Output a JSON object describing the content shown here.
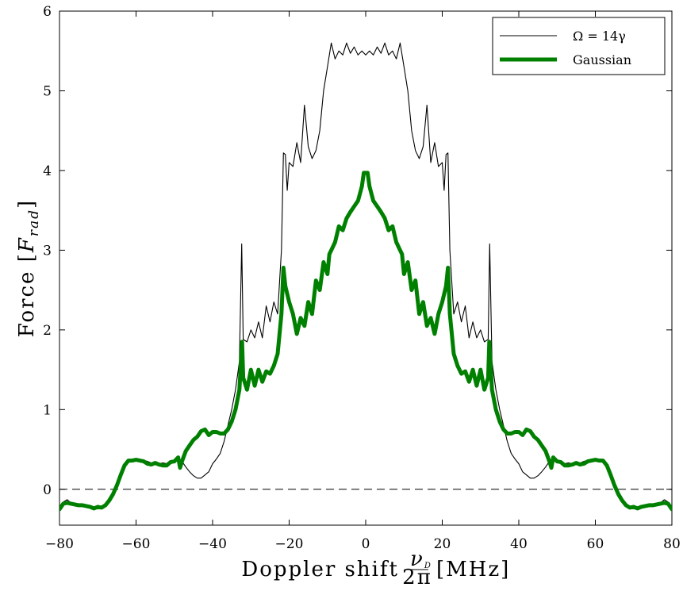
{
  "chart_data": {
    "type": "line",
    "title": "",
    "xlabel": {
      "prefix": "Doppler shift",
      "frac_num": "ν",
      "frac_num_sub": "D",
      "frac_den": "2π",
      "unit": "[MHz]"
    },
    "ylabel": {
      "prefix": "Force [",
      "var": "F",
      "sub": "rad",
      "suffix": "]"
    },
    "xlim": [
      -80,
      80
    ],
    "ylim": [
      -0.45,
      6
    ],
    "xticks": [
      -80,
      -60,
      -40,
      -20,
      0,
      20,
      40,
      60,
      80
    ],
    "yticks": [
      0,
      1,
      2,
      3,
      4,
      5,
      6
    ],
    "xtick_labels": [
      "−80",
      "−60",
      "−40",
      "−20",
      "0",
      "20",
      "40",
      "60",
      "80"
    ],
    "ytick_labels": [
      "0",
      "1",
      "2",
      "3",
      "4",
      "5",
      "6"
    ],
    "grid": false,
    "legend_placement": "top-right",
    "reference_line": {
      "y": 0,
      "style": "dashed",
      "color": "#000000"
    },
    "series": [
      {
        "name": "Ω = 14γ",
        "color": "#000000",
        "width": "thin",
        "half_points": [
          [
            0,
            5.45
          ],
          [
            1,
            5.5
          ],
          [
            2,
            5.45
          ],
          [
            3,
            5.55
          ],
          [
            4,
            5.47
          ],
          [
            5,
            5.6
          ],
          [
            6,
            5.45
          ],
          [
            7,
            5.5
          ],
          [
            8,
            5.4
          ],
          [
            9,
            5.6
          ],
          [
            10,
            5.3
          ],
          [
            11,
            5.0
          ],
          [
            12,
            4.5
          ],
          [
            13,
            4.25
          ],
          [
            14,
            4.15
          ],
          [
            15,
            4.3
          ],
          [
            16,
            4.82
          ],
          [
            17,
            4.1
          ],
          [
            18,
            4.35
          ],
          [
            19,
            4.05
          ],
          [
            20,
            4.1
          ],
          [
            20.5,
            3.75
          ],
          [
            21,
            4.2
          ],
          [
            21.5,
            4.22
          ],
          [
            22,
            3.0
          ],
          [
            23,
            2.2
          ],
          [
            24,
            2.35
          ],
          [
            25,
            2.1
          ],
          [
            26,
            2.3
          ],
          [
            27,
            1.9
          ],
          [
            28,
            2.1
          ],
          [
            29,
            1.9
          ],
          [
            30,
            2.0
          ],
          [
            31,
            1.85
          ],
          [
            32,
            1.88
          ],
          [
            32.4,
            3.08
          ],
          [
            33,
            1.6
          ],
          [
            34,
            1.25
          ],
          [
            35,
            1.0
          ],
          [
            36,
            0.8
          ],
          [
            37,
            0.6
          ],
          [
            38,
            0.45
          ],
          [
            39,
            0.38
          ],
          [
            40,
            0.32
          ],
          [
            41,
            0.22
          ],
          [
            42,
            0.18
          ],
          [
            43,
            0.14
          ],
          [
            44,
            0.14
          ],
          [
            45,
            0.17
          ],
          [
            46,
            0.22
          ],
          [
            47,
            0.28
          ],
          [
            48,
            0.35
          ],
          [
            49,
            0.38
          ],
          [
            50,
            0.35
          ],
          [
            51,
            0.36
          ],
          [
            52,
            0.32
          ],
          [
            53,
            0.33
          ],
          [
            54,
            0.32
          ],
          [
            55,
            0.34
          ],
          [
            56,
            0.33
          ],
          [
            57,
            0.35
          ],
          [
            58,
            0.36
          ],
          [
            59,
            0.37
          ],
          [
            60,
            0.37
          ],
          [
            61,
            0.36
          ],
          [
            62,
            0.36
          ],
          [
            63,
            0.3
          ],
          [
            64,
            0.18
          ],
          [
            65,
            0.05
          ],
          [
            66,
            -0.06
          ],
          [
            67,
            -0.14
          ],
          [
            68,
            -0.2
          ],
          [
            69,
            -0.23
          ],
          [
            70,
            -0.22
          ],
          [
            71,
            -0.24
          ],
          [
            72,
            -0.21
          ],
          [
            73,
            -0.2
          ],
          [
            74,
            -0.19
          ],
          [
            75,
            -0.2
          ],
          [
            76,
            -0.19
          ],
          [
            77,
            -0.17
          ],
          [
            78,
            -0.13
          ],
          [
            79,
            -0.16
          ],
          [
            80,
            -0.25
          ]
        ]
      },
      {
        "name": "Gaussian",
        "color": "#008000",
        "width": "thick",
        "half_points": [
          [
            0,
            3.97
          ],
          [
            0.5,
            3.97
          ],
          [
            1,
            3.8
          ],
          [
            2,
            3.62
          ],
          [
            3,
            3.55
          ],
          [
            4,
            3.48
          ],
          [
            5,
            3.4
          ],
          [
            6,
            3.25
          ],
          [
            7,
            3.3
          ],
          [
            8,
            3.1
          ],
          [
            9,
            3.0
          ],
          [
            9.5,
            2.95
          ],
          [
            10,
            2.7
          ],
          [
            11,
            2.85
          ],
          [
            12,
            2.5
          ],
          [
            13,
            2.62
          ],
          [
            14,
            2.2
          ],
          [
            15,
            2.35
          ],
          [
            16,
            2.05
          ],
          [
            17,
            2.15
          ],
          [
            18,
            1.95
          ],
          [
            19,
            2.2
          ],
          [
            20,
            2.35
          ],
          [
            21,
            2.55
          ],
          [
            21.5,
            2.78
          ],
          [
            22,
            2.2
          ],
          [
            23,
            1.7
          ],
          [
            24,
            1.55
          ],
          [
            25,
            1.45
          ],
          [
            26,
            1.48
          ],
          [
            27,
            1.35
          ],
          [
            28,
            1.5
          ],
          [
            29,
            1.3
          ],
          [
            30,
            1.5
          ],
          [
            31,
            1.25
          ],
          [
            32,
            1.4
          ],
          [
            32.3,
            1.85
          ],
          [
            33,
            1.25
          ],
          [
            34,
            1.0
          ],
          [
            35,
            0.85
          ],
          [
            36,
            0.75
          ],
          [
            37,
            0.7
          ],
          [
            38,
            0.7
          ],
          [
            39,
            0.72
          ],
          [
            40,
            0.72
          ],
          [
            41,
            0.68
          ],
          [
            42,
            0.75
          ],
          [
            43,
            0.73
          ],
          [
            44,
            0.66
          ],
          [
            45,
            0.62
          ],
          [
            46,
            0.55
          ],
          [
            47,
            0.48
          ],
          [
            48,
            0.35
          ],
          [
            48.5,
            0.27
          ],
          [
            49,
            0.4
          ],
          [
            50,
            0.35
          ],
          [
            51,
            0.34
          ],
          [
            52,
            0.3
          ],
          [
            53,
            0.3
          ],
          [
            54,
            0.31
          ],
          [
            55,
            0.33
          ],
          [
            56,
            0.31
          ],
          [
            57,
            0.32
          ],
          [
            58,
            0.35
          ],
          [
            59,
            0.36
          ],
          [
            60,
            0.37
          ],
          [
            61,
            0.36
          ],
          [
            62,
            0.36
          ],
          [
            63,
            0.3
          ],
          [
            64,
            0.18
          ],
          [
            65,
            0.05
          ],
          [
            66,
            -0.06
          ],
          [
            67,
            -0.14
          ],
          [
            68,
            -0.2
          ],
          [
            69,
            -0.23
          ],
          [
            70,
            -0.22
          ],
          [
            71,
            -0.24
          ],
          [
            72,
            -0.22
          ],
          [
            73,
            -0.21
          ],
          [
            74,
            -0.2
          ],
          [
            75,
            -0.2
          ],
          [
            76,
            -0.19
          ],
          [
            77,
            -0.18
          ],
          [
            78,
            -0.17
          ],
          [
            79,
            -0.18
          ],
          [
            80,
            -0.25
          ]
        ]
      }
    ]
  }
}
